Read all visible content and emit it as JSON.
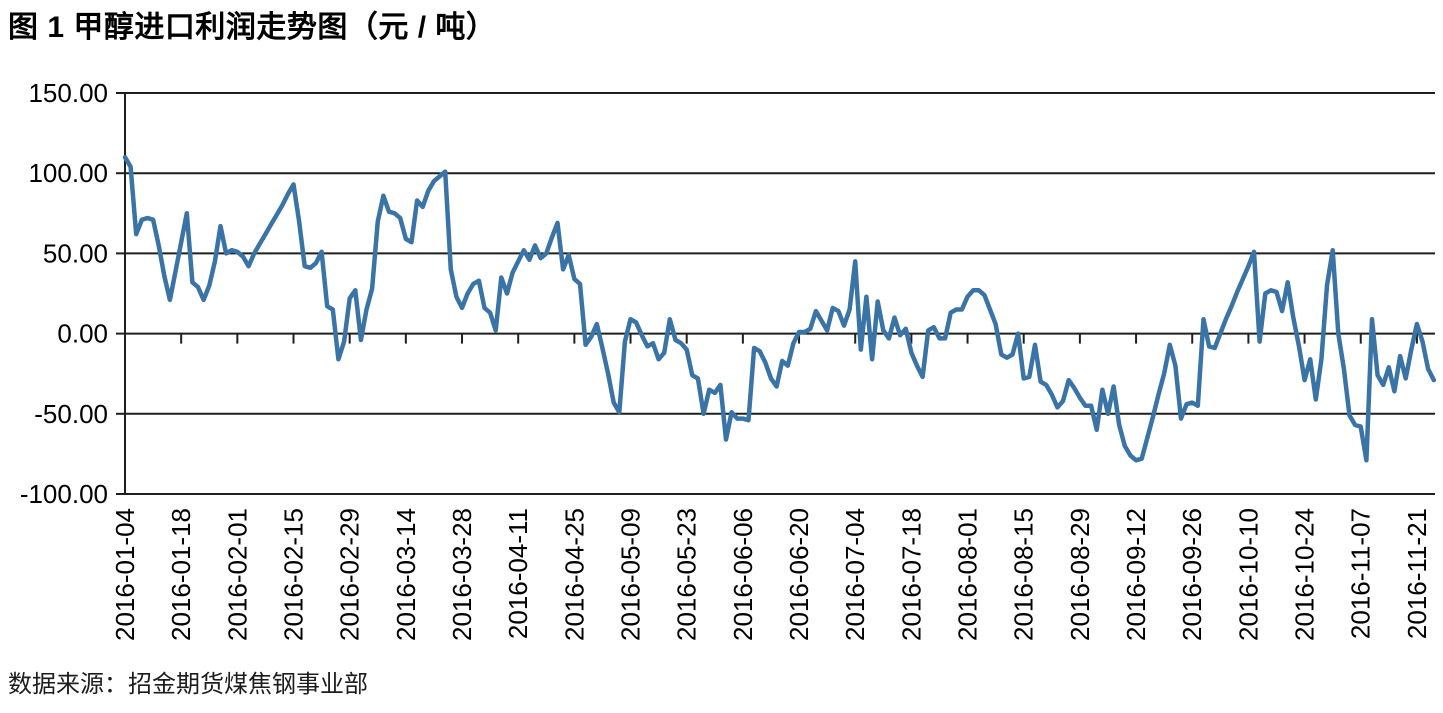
{
  "title": "图 1  甲醇进口利润走势图（元 / 吨）",
  "source": "数据来源：招金期货煤焦钢事业部",
  "chart_data": {
    "type": "line",
    "title": "图 1 甲醇进口利润走势图（元 / 吨）",
    "series_name": "甲醇进口利润",
    "unit": "元/吨",
    "line_color": "#3A74A6",
    "grid_color": "#1f1f1f",
    "grid": "horizontal",
    "legend_position": "none",
    "ylim": [
      -100,
      150
    ],
    "ytick_values": [
      150,
      100,
      50,
      0,
      -50,
      -100
    ],
    "ytick_labels": [
      "150.00",
      "100.00",
      "50.00",
      "0.00",
      "-50.00",
      "-100.00"
    ],
    "xtick_labels": [
      "2016-01-04",
      "2016-01-18",
      "2016-02-01",
      "2016-02-15",
      "2016-02-29",
      "2016-03-14",
      "2016-03-28",
      "2016-04-11",
      "2016-04-25",
      "2016-05-09",
      "2016-05-23",
      "2016-06-06",
      "2016-06-20",
      "2016-07-04",
      "2016-07-18",
      "2016-08-01",
      "2016-08-15",
      "2016-08-29",
      "2016-09-12",
      "2016-09-26",
      "2016-10-10",
      "2016-10-24",
      "2016-11-07",
      "2016-11-21"
    ],
    "points_per_tick": 10,
    "values": [
      110,
      104,
      62,
      71,
      72,
      71,
      55,
      36,
      21,
      39,
      57,
      75,
      32,
      29,
      21,
      30,
      45,
      67,
      50,
      52,
      51,
      48,
      42,
      50,
      56,
      62,
      68,
      74,
      80,
      87,
      93,
      70,
      42,
      41,
      44,
      51,
      17,
      15,
      -16,
      -5,
      22,
      27,
      -4,
      15,
      28,
      70,
      86,
      76,
      75,
      72,
      59,
      57,
      83,
      79,
      89,
      95,
      98,
      101,
      40,
      23,
      16,
      25,
      31,
      33,
      16,
      13,
      2,
      35,
      25,
      38,
      45,
      52,
      46,
      55,
      47,
      50,
      60,
      69,
      40,
      49,
      34,
      31,
      -7,
      -2,
      6,
      -9,
      -25,
      -43,
      -49,
      -5,
      9,
      7,
      -1,
      -8,
      -6,
      -16,
      -12,
      9,
      -4,
      -6,
      -10,
      -26,
      -28,
      -50,
      -35,
      -37,
      -32,
      -66,
      -49,
      -53,
      -53,
      -54,
      -9,
      -11,
      -18,
      -28,
      -33,
      -17,
      -20,
      -6,
      1,
      1,
      3,
      14,
      8,
      2,
      16,
      14,
      5,
      15,
      45,
      -10,
      23,
      -16,
      20,
      2,
      -3,
      10,
      -1,
      3,
      -12,
      -20,
      -27,
      2,
      4,
      -3,
      -3,
      13,
      15,
      15,
      23,
      27,
      27,
      24,
      15,
      6,
      -13,
      -15,
      -13,
      0,
      -28,
      -27,
      -7,
      -30,
      -32,
      -38,
      -46,
      -42,
      -29,
      -34,
      -40,
      -45,
      -45,
      -60,
      -35,
      -50,
      -33,
      -57,
      -70,
      -76,
      -79,
      -78,
      -65,
      -52,
      -38,
      -25,
      -7,
      -20,
      -53,
      -44,
      -43,
      -45,
      9,
      -8,
      -9,
      0,
      9,
      17,
      26,
      34,
      42,
      51,
      -5,
      25,
      27,
      26,
      14,
      32,
      10,
      -8,
      -29,
      -16,
      -41,
      -16,
      30,
      52,
      0,
      -22,
      -51,
      -57,
      -58,
      -79,
      9,
      -26,
      -32,
      -21,
      -36,
      -14,
      -28,
      -10,
      6,
      -5,
      -22,
      -29
    ]
  }
}
